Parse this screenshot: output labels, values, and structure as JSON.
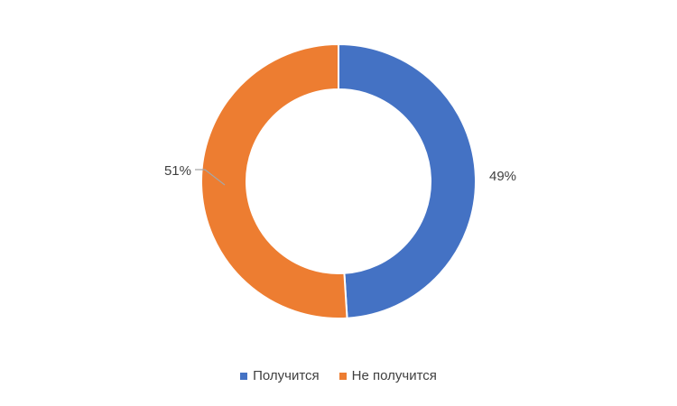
{
  "chart_data": {
    "type": "pie",
    "variant": "donut",
    "categories": [
      "Получится",
      "Не получится"
    ],
    "values": [
      49,
      51
    ],
    "value_labels": [
      "49%",
      "51%"
    ],
    "colors": [
      "#4472C4",
      "#ED7D31"
    ],
    "legend_placement": "bottom",
    "title": ""
  }
}
